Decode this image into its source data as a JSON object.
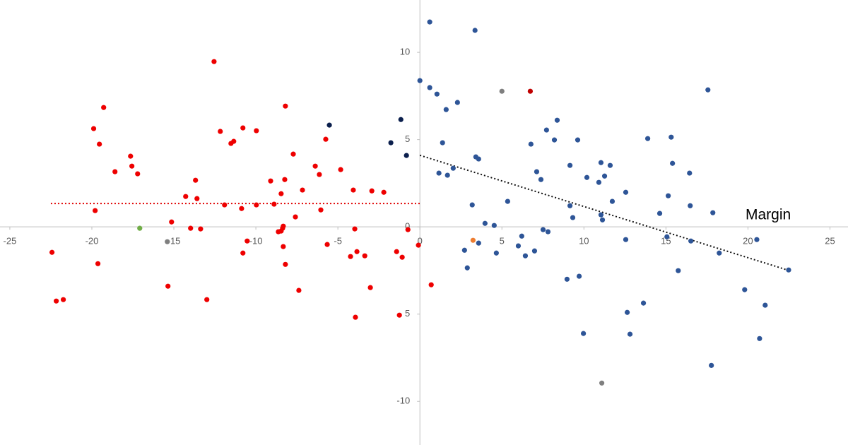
{
  "chart_data": {
    "type": "scatter",
    "annotations": [
      "Margin"
    ],
    "xlim": [
      -25.6,
      26.1
    ],
    "ylim": [
      -12.5,
      13.0
    ],
    "xticks": [
      -25,
      -20,
      -15,
      -10,
      -5,
      0,
      5,
      10,
      15,
      20,
      25
    ],
    "yticks": [
      10,
      5,
      0,
      {
        "value": -5,
        "label": "5"
      },
      -10
    ],
    "series": [
      {
        "color": "#ee0000",
        "x": [
          -12.55,
          -19.28,
          -19.89,
          -19.54,
          -18.59,
          -17.64,
          -17.56,
          -17.21,
          -19.8,
          -22.43,
          -19.63,
          -22.17,
          -21.74,
          -8.2,
          -12.17,
          -10.79,
          -9.97,
          -11.35,
          -11.52,
          -7.72,
          -13.68,
          -14.28,
          -13.59,
          -11.91,
          -10.87,
          -9.97,
          -8.89,
          -9.1,
          -8.24,
          -7.16,
          -8.46,
          -7.59,
          -6.38,
          -6.13,
          -5.74,
          -4.83,
          -6.04,
          -4.06,
          -2.93,
          -2.2,
          -15.14,
          -13.98,
          -13.37,
          -8.33,
          -8.37,
          -8.46,
          -8.63,
          -3.97,
          -10.53,
          -10.79,
          -8.33,
          -8.2,
          -5.65,
          -4.23,
          -3.84,
          -3.36,
          -1.42,
          -1.08,
          -0.73,
          -0.09,
          -15.36,
          -12.99,
          -7.38,
          -3.93,
          -3.02,
          -1.25,
          0.69
        ],
        "values": [
          9.47,
          6.84,
          5.63,
          4.74,
          3.16,
          4.05,
          3.48,
          3.04,
          0.93,
          -1.46,
          -2.11,
          -4.25,
          -4.17,
          6.92,
          5.47,
          5.67,
          5.51,
          4.9,
          4.78,
          4.17,
          2.67,
          1.74,
          1.62,
          1.26,
          1.05,
          1.26,
          1.3,
          2.63,
          2.71,
          2.11,
          1.9,
          0.57,
          3.48,
          3.0,
          5.02,
          3.28,
          0.97,
          2.11,
          2.06,
          1.98,
          0.28,
          -0.08,
          -0.12,
          0.04,
          -0.08,
          -0.24,
          -0.28,
          -0.12,
          -0.81,
          -1.5,
          -1.13,
          -2.15,
          -1.01,
          -1.7,
          -1.42,
          -1.66,
          -1.42,
          -1.74,
          -0.16,
          -1.05,
          -3.4,
          -4.17,
          -3.64,
          -5.18,
          -3.48,
          -5.06,
          -3.32
        ]
      },
      {
        "color": "#2e5597",
        "x": [
          0.6,
          3.36,
          0.0,
          0.6,
          1.04,
          2.29,
          1.6,
          1.38,
          2.03,
          1.16,
          1.68,
          3.41,
          3.58,
          3.19,
          5.35,
          6.77,
          7.72,
          8.37,
          8.2,
          9.62,
          7.12,
          7.38,
          9.15,
          10.18,
          11.04,
          11.6,
          11.26,
          10.91,
          12.55,
          13.89,
          15.32,
          15.4,
          16.44,
          17.56,
          15.14,
          14.62,
          9.15,
          9.32,
          11.73,
          11.04,
          11.13,
          3.97,
          4.53,
          3.58,
          2.72,
          2.89,
          4.66,
          6.0,
          6.21,
          6.43,
          6.99,
          7.51,
          7.81,
          12.55,
          15.06,
          16.48,
          16.52,
          17.86,
          18.25,
          15.75,
          20.54,
          22.48,
          8.97,
          9.71,
          12.64,
          13.63,
          12.81,
          9.97,
          19.8,
          21.05,
          20.71,
          17.77
        ],
        "values": [
          11.74,
          11.26,
          8.38,
          7.98,
          7.61,
          7.13,
          6.72,
          4.82,
          3.36,
          3.08,
          2.96,
          4.01,
          3.89,
          1.26,
          1.46,
          4.74,
          5.55,
          6.11,
          4.98,
          4.98,
          3.16,
          2.71,
          3.52,
          2.83,
          3.68,
          3.52,
          2.91,
          2.55,
          1.98,
          5.06,
          5.14,
          3.64,
          3.08,
          7.85,
          1.78,
          0.77,
          1.21,
          0.53,
          1.46,
          0.69,
          0.4,
          0.2,
          0.08,
          -0.93,
          -1.34,
          -2.35,
          -1.5,
          -1.09,
          -0.53,
          -1.66,
          -1.38,
          -0.16,
          -0.28,
          -0.73,
          -0.57,
          1.21,
          -0.81,
          0.81,
          -1.5,
          -2.51,
          -0.73,
          -2.47,
          -3.0,
          -2.83,
          -4.9,
          -4.37,
          -6.15,
          -6.11,
          -3.6,
          -4.49,
          -6.4,
          -7.94
        ]
      },
      {
        "color": "#0b1f4d",
        "x": [
          -5.52,
          -1.77,
          -1.16,
          -0.82
        ],
        "values": [
          5.83,
          4.82,
          6.15,
          4.09
        ]
      },
      {
        "color": "#70ad47",
        "x": [
          -17.08
        ],
        "values": [
          -0.08
        ]
      },
      {
        "color": "#7f7f7f",
        "x": [
          -15.4,
          5.0,
          11.09
        ],
        "values": [
          -0.85,
          7.77,
          -8.95
        ]
      },
      {
        "color": "#ed7d31",
        "x": [
          3.24
        ],
        "values": [
          -0.77
        ]
      },
      {
        "color": "#c00000",
        "x": [
          6.73
        ],
        "values": [
          7.77
        ]
      }
    ],
    "trendlines": [
      {
        "color": "#e00000",
        "x": [
          -22.5,
          0
        ],
        "values": [
          1.34,
          1.34
        ]
      },
      {
        "color": "#111111",
        "x": [
          0,
          22.5
        ],
        "values": [
          4.1,
          -2.5
        ]
      }
    ]
  }
}
